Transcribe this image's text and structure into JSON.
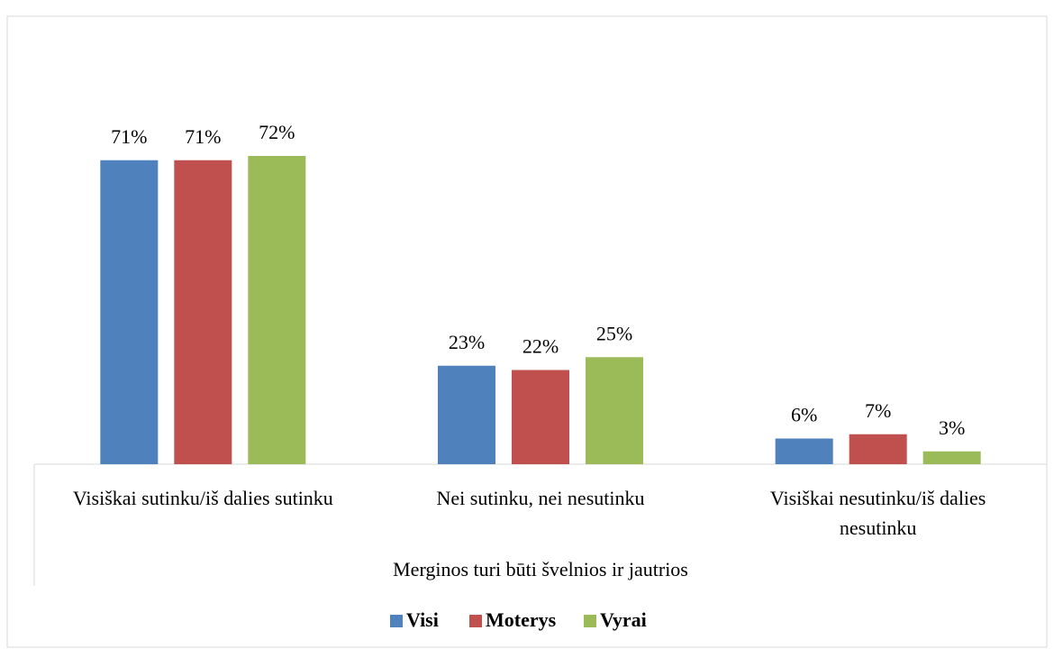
{
  "chart_data": {
    "type": "bar",
    "x_label": "Merginos turi būti švelnios ir jautrios",
    "categories": [
      "Visiškai sutinku/iš dalies sutinku",
      "Nei sutinku, nei nesutinku",
      "Visiškai nesutinku/iš dalies nesutinku"
    ],
    "series": [
      {
        "name": "Visi",
        "color": "#4f81bd",
        "values": [
          71,
          23,
          6
        ],
        "value_labels": [
          "71%",
          "23%",
          "6%"
        ]
      },
      {
        "name": "Moterys",
        "color": "#c0504d",
        "values": [
          71,
          22,
          7
        ],
        "value_labels": [
          "71%",
          "22%",
          "7%"
        ]
      },
      {
        "name": "Vyrai",
        "color": "#9bbb59",
        "values": [
          72,
          25,
          3
        ],
        "value_labels": [
          "72%",
          "25%",
          "3%"
        ]
      }
    ],
    "legend": "bottom"
  }
}
